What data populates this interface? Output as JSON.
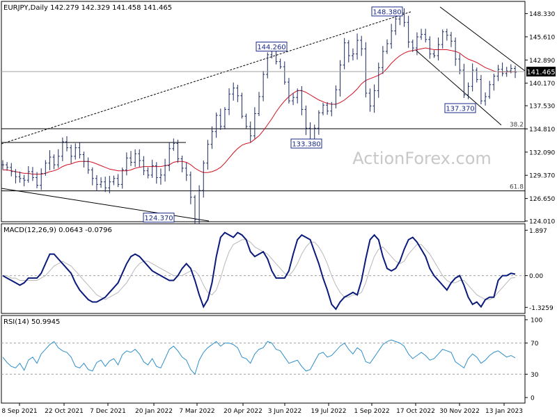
{
  "header": {
    "symbol_line": "EURJPY,Daily  142.279 142.329 141.458 141.465",
    "macd_label": "MACD(12,26,9) 0.0643 -0.0796",
    "rsi_label": "RSI(14) 50.9945",
    "watermark": "ActionForex.com"
  },
  "colors": {
    "price": "#1a2a5e",
    "ma": "#d01020",
    "macd": "#0a1a7a",
    "signal": "#b8b8b8",
    "rsi": "#2e8fc8",
    "grid": "#b0b0b0",
    "trend": "#000000"
  },
  "chart_data": [
    {
      "type": "line",
      "panel": "price",
      "title": "EURJPY,Daily",
      "ylim": [
        124.01,
        149.6
      ],
      "y_ticks": [
        "148.330",
        "145.610",
        "142.890",
        "140.170",
        "137.530",
        "134.810",
        "132.090",
        "129.370",
        "126.650",
        "124.010"
      ],
      "x_ticks": [
        "8 Sep 2021",
        "22 Oct 2021",
        "7 Dec 2021",
        "20 Jan 2022",
        "7 Mar 2022",
        "20 Apr 2022",
        "3 Jun 2022",
        "19 Jul 2022",
        "1 Sep 2022",
        "17 Oct 2022",
        "30 Nov 2022",
        "13 Jan 2023"
      ],
      "current_price": "141.465",
      "series": [
        {
          "name": "",
          "values": [
            130.6,
            130.3,
            129.8,
            129.2,
            129.0,
            128.8,
            129.8,
            129.1,
            128.2,
            129.6,
            130.8,
            131.5,
            130.6,
            131.6,
            133.3,
            132.6,
            131.6,
            132.6,
            131.8,
            131.0,
            130.0,
            129.0,
            128.3,
            128.6,
            127.9,
            128.6,
            129.0,
            128.3,
            130.0,
            131.4,
            130.9,
            131.9,
            131.1,
            129.9,
            129.4,
            130.5,
            129.1,
            129.4,
            130.5,
            132.5,
            133.1,
            131.3,
            130.2,
            129.4,
            126.8,
            124.2,
            127.6,
            130.8,
            133.0,
            134.5,
            136.4,
            135.1,
            137.1,
            138.9,
            139.6,
            138.7,
            136.3,
            135.1,
            134.0,
            136.6,
            138.6,
            141.2,
            143.5,
            144.0,
            142.7,
            142.1,
            140.3,
            138.1,
            138.5,
            139.3,
            137.1,
            134.9,
            133.4,
            134.9,
            136.7,
            137.6,
            136.9,
            137.7,
            139.4,
            142.3,
            144.9,
            143.4,
            143.6,
            145.2,
            144.2,
            139.0,
            137.5,
            139.3,
            142.0,
            143.9,
            144.8,
            146.3,
            147.7,
            148.4,
            147.3,
            145.0,
            144.3,
            145.6,
            145.9,
            145.3,
            143.6,
            143.4,
            144.7,
            146.2,
            145.8,
            145.1,
            143.0,
            141.7,
            138.8,
            139.8,
            141.7,
            140.6,
            138.1,
            138.6,
            140.0,
            141.0,
            141.8,
            141.3,
            141.6,
            141.9,
            141.465
          ]
        },
        {
          "name": "",
          "values": [
            130.0,
            130.0,
            129.9,
            129.8,
            129.7,
            129.6,
            129.6,
            129.5,
            129.5,
            129.5,
            129.6,
            129.8,
            129.9,
            130.1,
            130.4,
            130.6,
            130.7,
            130.9,
            131.0,
            131.0,
            131.0,
            130.9,
            130.7,
            130.5,
            130.3,
            130.1,
            130.0,
            129.9,
            129.9,
            129.9,
            130.0,
            130.2,
            130.3,
            130.4,
            130.4,
            130.4,
            130.4,
            130.4,
            130.5,
            130.6,
            130.9,
            131.0,
            131.0,
            130.9,
            130.6,
            130.2,
            129.9,
            129.7,
            129.7,
            129.8,
            130.0,
            130.3,
            130.8,
            131.4,
            132.0,
            132.5,
            132.9,
            133.1,
            133.2,
            133.6,
            134.0,
            134.6,
            135.3,
            136.0,
            136.8,
            137.5,
            138.1,
            138.6,
            139.0,
            139.3,
            139.3,
            139.1,
            138.8,
            138.5,
            138.2,
            138.0,
            137.8,
            137.7,
            137.7,
            137.9,
            138.2,
            138.6,
            139.0,
            139.5,
            140.1,
            140.5,
            140.7,
            140.9,
            141.1,
            141.4,
            141.9,
            142.5,
            143.0,
            143.4,
            143.7,
            143.9,
            144.0,
            144.1,
            144.2,
            144.3,
            144.2,
            144.1,
            144.1,
            144.1,
            144.1,
            144.0,
            143.9,
            143.7,
            143.3,
            143.0,
            142.8,
            142.6,
            142.3,
            142.0,
            141.8,
            141.6,
            141.5,
            141.5,
            141.5,
            141.5,
            141.5
          ]
        }
      ],
      "levels": [
        {
          "value": 148.38,
          "label": "148.380"
        },
        {
          "value": 144.26,
          "label": "144.260"
        },
        {
          "value": 133.38,
          "label": "133.380"
        },
        {
          "value": 137.37,
          "label": "137.370"
        },
        {
          "value": 124.37,
          "label": "124.370"
        }
      ],
      "fib": [
        {
          "value": 134.83,
          "label": "38.2"
        },
        {
          "value": 127.55,
          "label": "61.8"
        }
      ]
    },
    {
      "type": "line",
      "panel": "macd",
      "title": "MACD(12,26,9) 0.0643 -0.0796",
      "ylim": [
        -1.55,
        2.05
      ],
      "y_ticks": [
        "1.897",
        "0.00",
        "-1.3259"
      ],
      "series": [
        {
          "name": "",
          "values": [
            0.0,
            -0.1,
            -0.2,
            -0.3,
            -0.4,
            -0.3,
            -0.1,
            -0.1,
            -0.1,
            0.1,
            0.5,
            0.9,
            0.9,
            0.7,
            0.5,
            0.3,
            0.1,
            -0.3,
            -0.6,
            -0.8,
            -1.0,
            -1.1,
            -1.1,
            -1.0,
            -0.9,
            -0.7,
            -0.5,
            -0.3,
            0.1,
            0.5,
            0.8,
            0.9,
            0.8,
            0.6,
            0.4,
            0.2,
            0.1,
            0.0,
            -0.1,
            -0.2,
            -0.2,
            0.0,
            0.3,
            0.5,
            0.3,
            -0.2,
            -0.8,
            -1.3,
            -1.0,
            -0.3,
            0.8,
            1.6,
            1.8,
            1.7,
            1.6,
            1.8,
            1.7,
            1.5,
            1.0,
            0.8,
            0.9,
            1.0,
            0.7,
            0.2,
            -0.1,
            -0.1,
            -0.1,
            0.2,
            0.9,
            1.5,
            1.7,
            1.6,
            1.5,
            1.0,
            0.5,
            -0.1,
            -0.6,
            -1.2,
            -1.4,
            -1.1,
            -0.9,
            -0.8,
            -0.7,
            -0.8,
            -0.2,
            0.7,
            1.5,
            1.7,
            1.5,
            0.8,
            0.3,
            0.2,
            0.3,
            0.6,
            1.1,
            1.5,
            1.6,
            1.4,
            1.1,
            0.8,
            0.3,
            0.0,
            -0.2,
            -0.4,
            -0.6,
            -0.3,
            -0.1,
            0.0,
            -0.4,
            -0.9,
            -1.2,
            -1.1,
            -1.3,
            -1.0,
            -0.9,
            -0.9,
            -0.2,
            -0.0,
            -0.0,
            0.1,
            0.06
          ]
        },
        {
          "name": "",
          "values": [
            0.0,
            0.0,
            -0.1,
            -0.1,
            -0.2,
            -0.2,
            -0.2,
            -0.2,
            -0.2,
            -0.1,
            0.0,
            0.2,
            0.4,
            0.5,
            0.6,
            0.5,
            0.4,
            0.2,
            0.0,
            -0.2,
            -0.4,
            -0.6,
            -0.8,
            -0.9,
            -1.0,
            -0.9,
            -0.8,
            -0.7,
            -0.5,
            -0.3,
            0.0,
            0.3,
            0.5,
            0.6,
            0.6,
            0.5,
            0.4,
            0.3,
            0.2,
            0.1,
            0.0,
            0.0,
            0.0,
            0.1,
            0.2,
            0.2,
            0.0,
            -0.4,
            -0.7,
            -0.8,
            -0.6,
            -0.1,
            0.5,
            1.0,
            1.3,
            1.4,
            1.5,
            1.5,
            1.4,
            1.2,
            1.1,
            1.0,
            0.9,
            0.7,
            0.5,
            0.3,
            0.1,
            0.0,
            0.2,
            0.5,
            0.9,
            1.2,
            1.4,
            1.4,
            1.2,
            0.9,
            0.5,
            0.0,
            -0.4,
            -0.7,
            -0.9,
            -0.9,
            -0.8,
            -0.8,
            -0.7,
            -0.3,
            0.3,
            0.8,
            1.1,
            1.2,
            1.0,
            0.8,
            0.6,
            0.5,
            0.6,
            0.9,
            1.1,
            1.3,
            1.3,
            1.1,
            0.9,
            0.6,
            0.3,
            0.0,
            -0.2,
            -0.3,
            -0.3,
            -0.2,
            -0.2,
            -0.4,
            -0.6,
            -0.8,
            -0.9,
            -1.0,
            -1.0,
            -0.9,
            -0.7,
            -0.5,
            -0.3,
            -0.1,
            -0.08
          ]
        }
      ]
    },
    {
      "type": "line",
      "panel": "rsi",
      "title": "RSI(14) 50.9945",
      "ylim": [
        0,
        100
      ],
      "y_ticks": [
        "100",
        "70",
        "30",
        "0"
      ],
      "series": [
        {
          "name": "",
          "values": [
            52,
            45,
            40,
            38,
            44,
            35,
            48,
            52,
            44,
            56,
            62,
            68,
            72,
            64,
            60,
            58,
            52,
            40,
            38,
            44,
            36,
            34,
            45,
            48,
            40,
            47,
            50,
            42,
            55,
            60,
            58,
            62,
            56,
            46,
            42,
            50,
            40,
            38,
            50,
            62,
            66,
            60,
            52,
            48,
            36,
            30,
            48,
            58,
            64,
            68,
            72,
            66,
            70,
            70,
            68,
            64,
            52,
            50,
            44,
            56,
            62,
            64,
            72,
            70,
            62,
            60,
            52,
            44,
            46,
            48,
            40,
            34,
            36,
            46,
            56,
            58,
            52,
            54,
            60,
            66,
            70,
            62,
            56,
            64,
            60,
            46,
            44,
            52,
            60,
            68,
            72,
            74,
            72,
            70,
            66,
            56,
            50,
            54,
            58,
            54,
            48,
            50,
            56,
            62,
            60,
            58,
            46,
            42,
            38,
            50,
            56,
            52,
            44,
            48,
            54,
            58,
            60,
            56,
            52,
            54,
            51
          ]
        }
      ],
      "levels": [
        70,
        30
      ]
    }
  ]
}
